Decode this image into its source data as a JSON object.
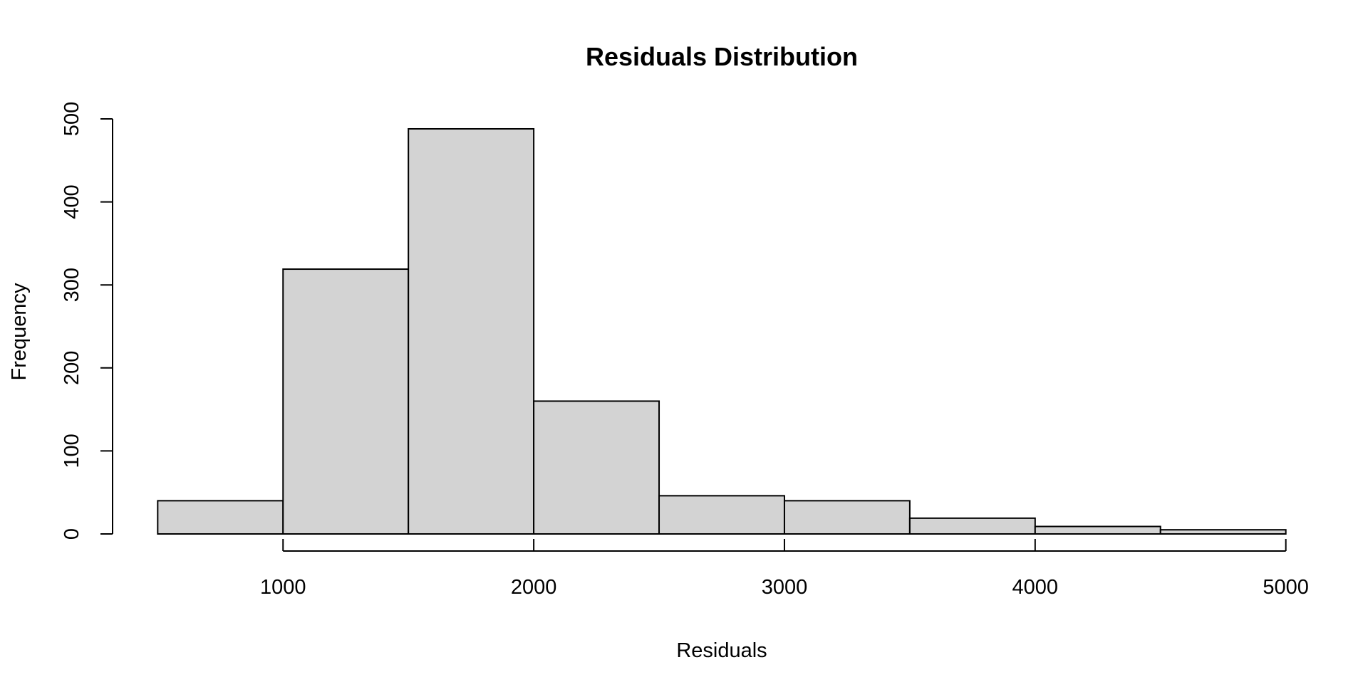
{
  "chart_data": {
    "type": "bar",
    "title": "Residuals Distribution",
    "xlabel": "Residuals",
    "ylabel": "Frequency",
    "bins": [
      {
        "x0": 500,
        "x1": 1000,
        "count": 40
      },
      {
        "x0": 1000,
        "x1": 1500,
        "count": 319
      },
      {
        "x0": 1500,
        "x1": 2000,
        "count": 488
      },
      {
        "x0": 2000,
        "x1": 2500,
        "count": 160
      },
      {
        "x0": 2500,
        "x1": 3000,
        "count": 46
      },
      {
        "x0": 3000,
        "x1": 3500,
        "count": 40
      },
      {
        "x0": 3500,
        "x1": 4000,
        "count": 19
      },
      {
        "x0": 4000,
        "x1": 4500,
        "count": 9
      },
      {
        "x0": 4500,
        "x1": 5000,
        "count": 5
      }
    ],
    "xticks": [
      1000,
      2000,
      3000,
      4000,
      5000
    ],
    "yticks": [
      0,
      100,
      200,
      300,
      400,
      500
    ],
    "xlim": [
      320,
      5180
    ],
    "ylim": [
      0,
      500
    ],
    "grid": false,
    "legend": "none",
    "bar_fill": "#d3d3d3",
    "bar_stroke": "#000000"
  }
}
